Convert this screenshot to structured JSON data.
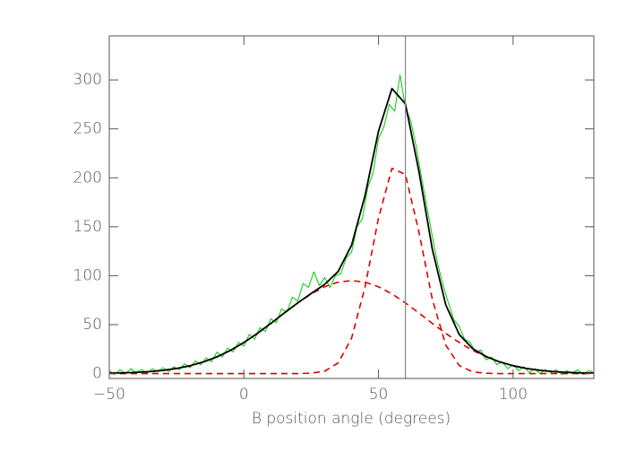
{
  "chart_data": {
    "type": "line",
    "xlabel": "B position angle (degrees)",
    "xlim": [
      -50,
      130
    ],
    "xticks": [
      {
        "value": -50,
        "label": "−50"
      },
      0,
      50,
      100
    ],
    "ylim": [
      -5,
      345
    ],
    "yticks": [
      0,
      50,
      100,
      150,
      200,
      250,
      300
    ],
    "vline": 60,
    "vline_color": "#888888",
    "series": [
      {
        "color": "#00cc00",
        "dash": false,
        "width": 1,
        "x": [
          -50,
          -48,
          -46,
          -44,
          -42,
          -40,
          -38,
          -36,
          -34,
          -32,
          -30,
          -28,
          -26,
          -24,
          -22,
          -20,
          -18,
          -16,
          -14,
          -12,
          -10,
          -8,
          -6,
          -4,
          -2,
          0,
          2,
          4,
          6,
          8,
          10,
          12,
          14,
          16,
          18,
          20,
          22,
          24,
          26,
          28,
          30,
          32,
          34,
          36,
          38,
          40,
          42,
          44,
          46,
          48,
          50,
          52,
          54,
          56,
          58,
          60,
          62,
          64,
          66,
          68,
          70,
          72,
          74,
          76,
          78,
          80,
          82,
          84,
          86,
          88,
          90,
          92,
          94,
          96,
          98,
          100,
          102,
          104,
          106,
          108,
          110,
          112,
          114,
          116,
          118,
          120,
          122,
          124,
          126,
          128,
          130
        ],
        "values": [
          3,
          -1,
          4,
          0,
          5,
          1,
          4,
          0,
          5,
          2,
          6,
          2,
          7,
          4,
          10,
          6,
          13,
          9,
          16,
          12,
          22,
          17,
          26,
          22,
          32,
          28,
          40,
          35,
          47,
          43,
          56,
          52,
          66,
          63,
          78,
          74,
          92,
          88,
          104,
          90,
          98,
          88,
          100,
          102,
          118,
          124,
          150,
          158,
          190,
          205,
          240,
          252,
          275,
          268,
          305,
          272,
          258,
          232,
          200,
          170,
          140,
          112,
          90,
          72,
          55,
          48,
          35,
          32,
          22,
          24,
          14,
          17,
          9,
          12,
          5,
          9,
          3,
          7,
          1,
          5,
          0,
          4,
          1,
          4,
          -1,
          3,
          0,
          4,
          -1,
          3,
          1
        ]
      },
      {
        "color": "#dd0000",
        "dash": true,
        "width": 1.6,
        "x": [
          -50,
          -45,
          -40,
          -35,
          -30,
          -25,
          -20,
          -15,
          -10,
          -5,
          0,
          5,
          10,
          15,
          20,
          25,
          30,
          35,
          40,
          45,
          50,
          55,
          60,
          65,
          70,
          75,
          80,
          85,
          90,
          95,
          100,
          105,
          110,
          115,
          120,
          125,
          130
        ],
        "values": [
          0,
          0,
          0,
          0,
          0,
          0,
          0,
          0,
          0,
          0,
          0,
          0,
          0,
          0,
          0,
          0.4,
          2.4,
          10.8,
          36.1,
          88.4,
          158.9,
          209.8,
          203.4,
          144.9,
          75.8,
          29.1,
          8.2,
          1.7,
          0.3,
          0,
          0,
          0,
          0,
          0,
          0,
          0,
          0
        ]
      },
      {
        "color": "#dd0000",
        "dash": true,
        "width": 1.6,
        "x": [
          -50,
          -45,
          -40,
          -35,
          -30,
          -25,
          -20,
          -15,
          -10,
          -5,
          0,
          5,
          10,
          15,
          20,
          25,
          30,
          35,
          40,
          45,
          50,
          55,
          60,
          65,
          70,
          75,
          80,
          85,
          90,
          95,
          100,
          105,
          110,
          115,
          120,
          125,
          130
        ],
        "values": [
          0.4,
          0.7,
          1.2,
          2.0,
          3.3,
          5.2,
          8.0,
          11.9,
          17.1,
          23.7,
          31.7,
          41.0,
          51.2,
          61.9,
          72.2,
          81.4,
          88.7,
          93.4,
          95,
          93.4,
          88.7,
          81.4,
          72.2,
          61.9,
          51.2,
          41.0,
          31.7,
          23.7,
          17.1,
          11.9,
          8.0,
          5.2,
          3.3,
          2.0,
          1.2,
          0.7,
          0.4
        ]
      },
      {
        "color": "#000000",
        "dash": false,
        "width": 1.8,
        "x": [
          -50,
          -45,
          -40,
          -35,
          -30,
          -25,
          -20,
          -15,
          -10,
          -5,
          0,
          5,
          10,
          15,
          20,
          25,
          30,
          35,
          40,
          45,
          50,
          55,
          60,
          65,
          70,
          75,
          80,
          85,
          90,
          95,
          100,
          105,
          110,
          115,
          120,
          125,
          130
        ],
        "values": [
          0.4,
          0.7,
          1.2,
          2.0,
          3.3,
          5.2,
          8.0,
          11.9,
          17.1,
          23.7,
          31.7,
          41.0,
          51.2,
          61.9,
          72.2,
          81.8,
          91.1,
          104.2,
          131.1,
          181.8,
          247.6,
          291.2,
          275.6,
          206.8,
          127.0,
          70.1,
          39.9,
          25.4,
          17.4,
          11.9,
          8.0,
          5.2,
          3.3,
          2.0,
          1.2,
          0.7,
          0.4
        ]
      }
    ]
  }
}
